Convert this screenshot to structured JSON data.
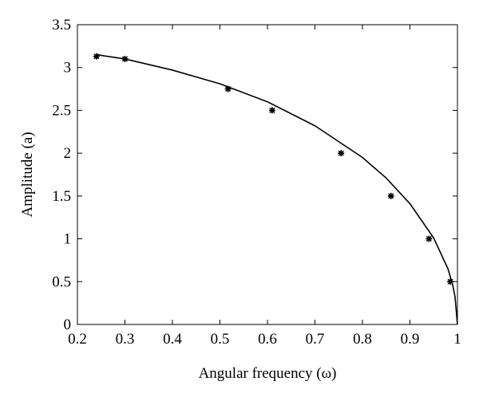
{
  "chart_data": {
    "type": "scatter",
    "xlabel": "Angular frequency (ω)",
    "ylabel": "Amplitude (a)",
    "xlim": [
      0.2,
      1
    ],
    "ylim": [
      0,
      3.5
    ],
    "xticks": [
      0.2,
      0.3,
      0.4,
      0.5,
      0.6,
      0.7,
      0.8,
      0.9,
      1
    ],
    "yticks": [
      0,
      0.5,
      1,
      1.5,
      2,
      2.5,
      3,
      3.5
    ],
    "series": [
      {
        "type": "line",
        "color": "#000000",
        "x": [
          0.24,
          0.3,
          0.4,
          0.5,
          0.6,
          0.7,
          0.8,
          0.85,
          0.9,
          0.95,
          0.98,
          0.99,
          0.995,
          1.0
        ],
        "values": [
          3.15,
          3.1,
          2.97,
          2.81,
          2.6,
          2.32,
          1.95,
          1.71,
          1.41,
          1.01,
          0.65,
          0.46,
          0.32,
          0
        ]
      },
      {
        "type": "scatter",
        "color": "#000000",
        "x": [
          0.24,
          0.3,
          0.517,
          0.61,
          0.755,
          0.86,
          0.94,
          0.985
        ],
        "values": [
          3.13,
          3.1,
          2.75,
          2.5,
          2.0,
          1.5,
          1.0,
          0.5
        ]
      }
    ]
  }
}
